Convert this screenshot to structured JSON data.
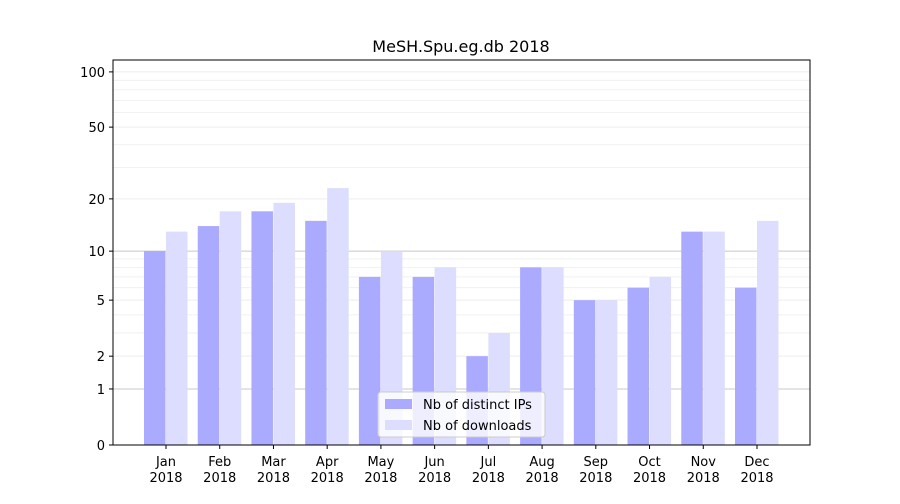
{
  "chart_data": {
    "type": "bar",
    "title": "MeSH.Spu.eg.db 2018",
    "xlabel": "",
    "ylabel": "",
    "yscale": "log(1+y)",
    "ylim": [
      0,
      116
    ],
    "yticks": [
      0,
      1,
      2,
      5,
      10,
      20,
      50,
      100
    ],
    "grid": true,
    "legend_position": "bottom-center",
    "categories": [
      "Jan\n2018",
      "Feb\n2018",
      "Mar\n2018",
      "Apr\n2018",
      "May\n2018",
      "Jun\n2018",
      "Jul\n2018",
      "Aug\n2018",
      "Sep\n2018",
      "Oct\n2018",
      "Nov\n2018",
      "Dec\n2018"
    ],
    "series": [
      {
        "name": "Nb of distinct IPs",
        "color": "#aaaaff",
        "values": [
          10,
          14,
          17,
          15,
          7,
          7,
          2,
          8,
          5,
          6,
          13,
          6
        ]
      },
      {
        "name": "Nb of downloads",
        "color": "#ddddff",
        "values": [
          13,
          17,
          19,
          23,
          10,
          8,
          3,
          8,
          5,
          7,
          13,
          15
        ]
      }
    ]
  }
}
